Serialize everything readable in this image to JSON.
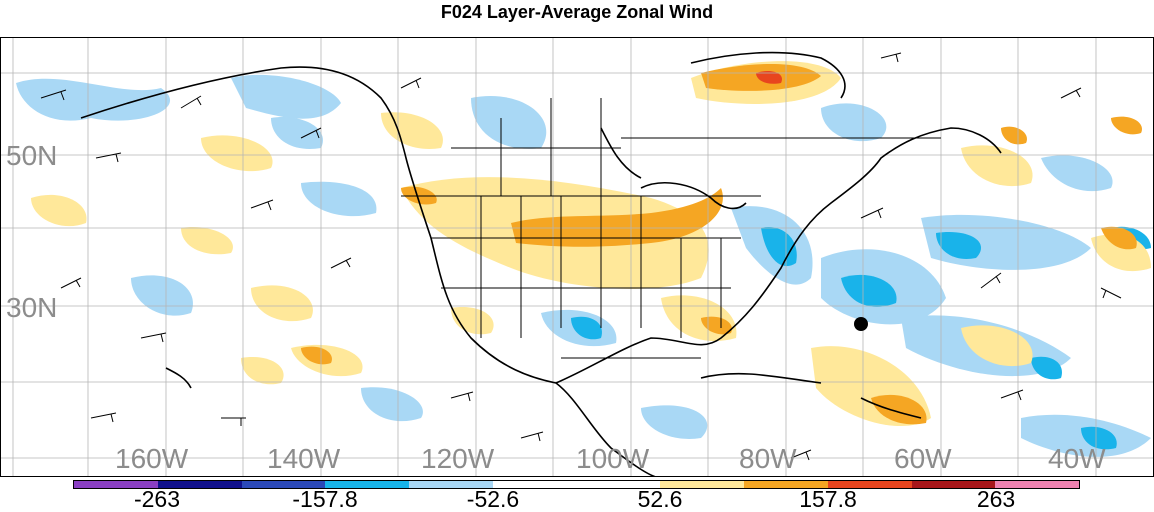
{
  "title": "F024 Layer-Average Zonal Wind",
  "lat_labels": [
    "50N",
    "30N"
  ],
  "lon_labels": [
    "160W",
    "140W",
    "120W",
    "100W",
    "80W",
    "60W",
    "40W"
  ],
  "colorbar": {
    "colors": [
      "#8a3fc3",
      "#10108c",
      "#2b49b8",
      "#18b4ea",
      "#a8d7f5",
      "#ffffff",
      "#ffffff",
      "#ffe89a",
      "#f5a623",
      "#e8451e",
      "#a8171a",
      "#ef82b1"
    ],
    "labels": [
      "-263",
      "-157.8",
      "-52.6",
      "52.6",
      "157.8",
      "263"
    ]
  }
}
